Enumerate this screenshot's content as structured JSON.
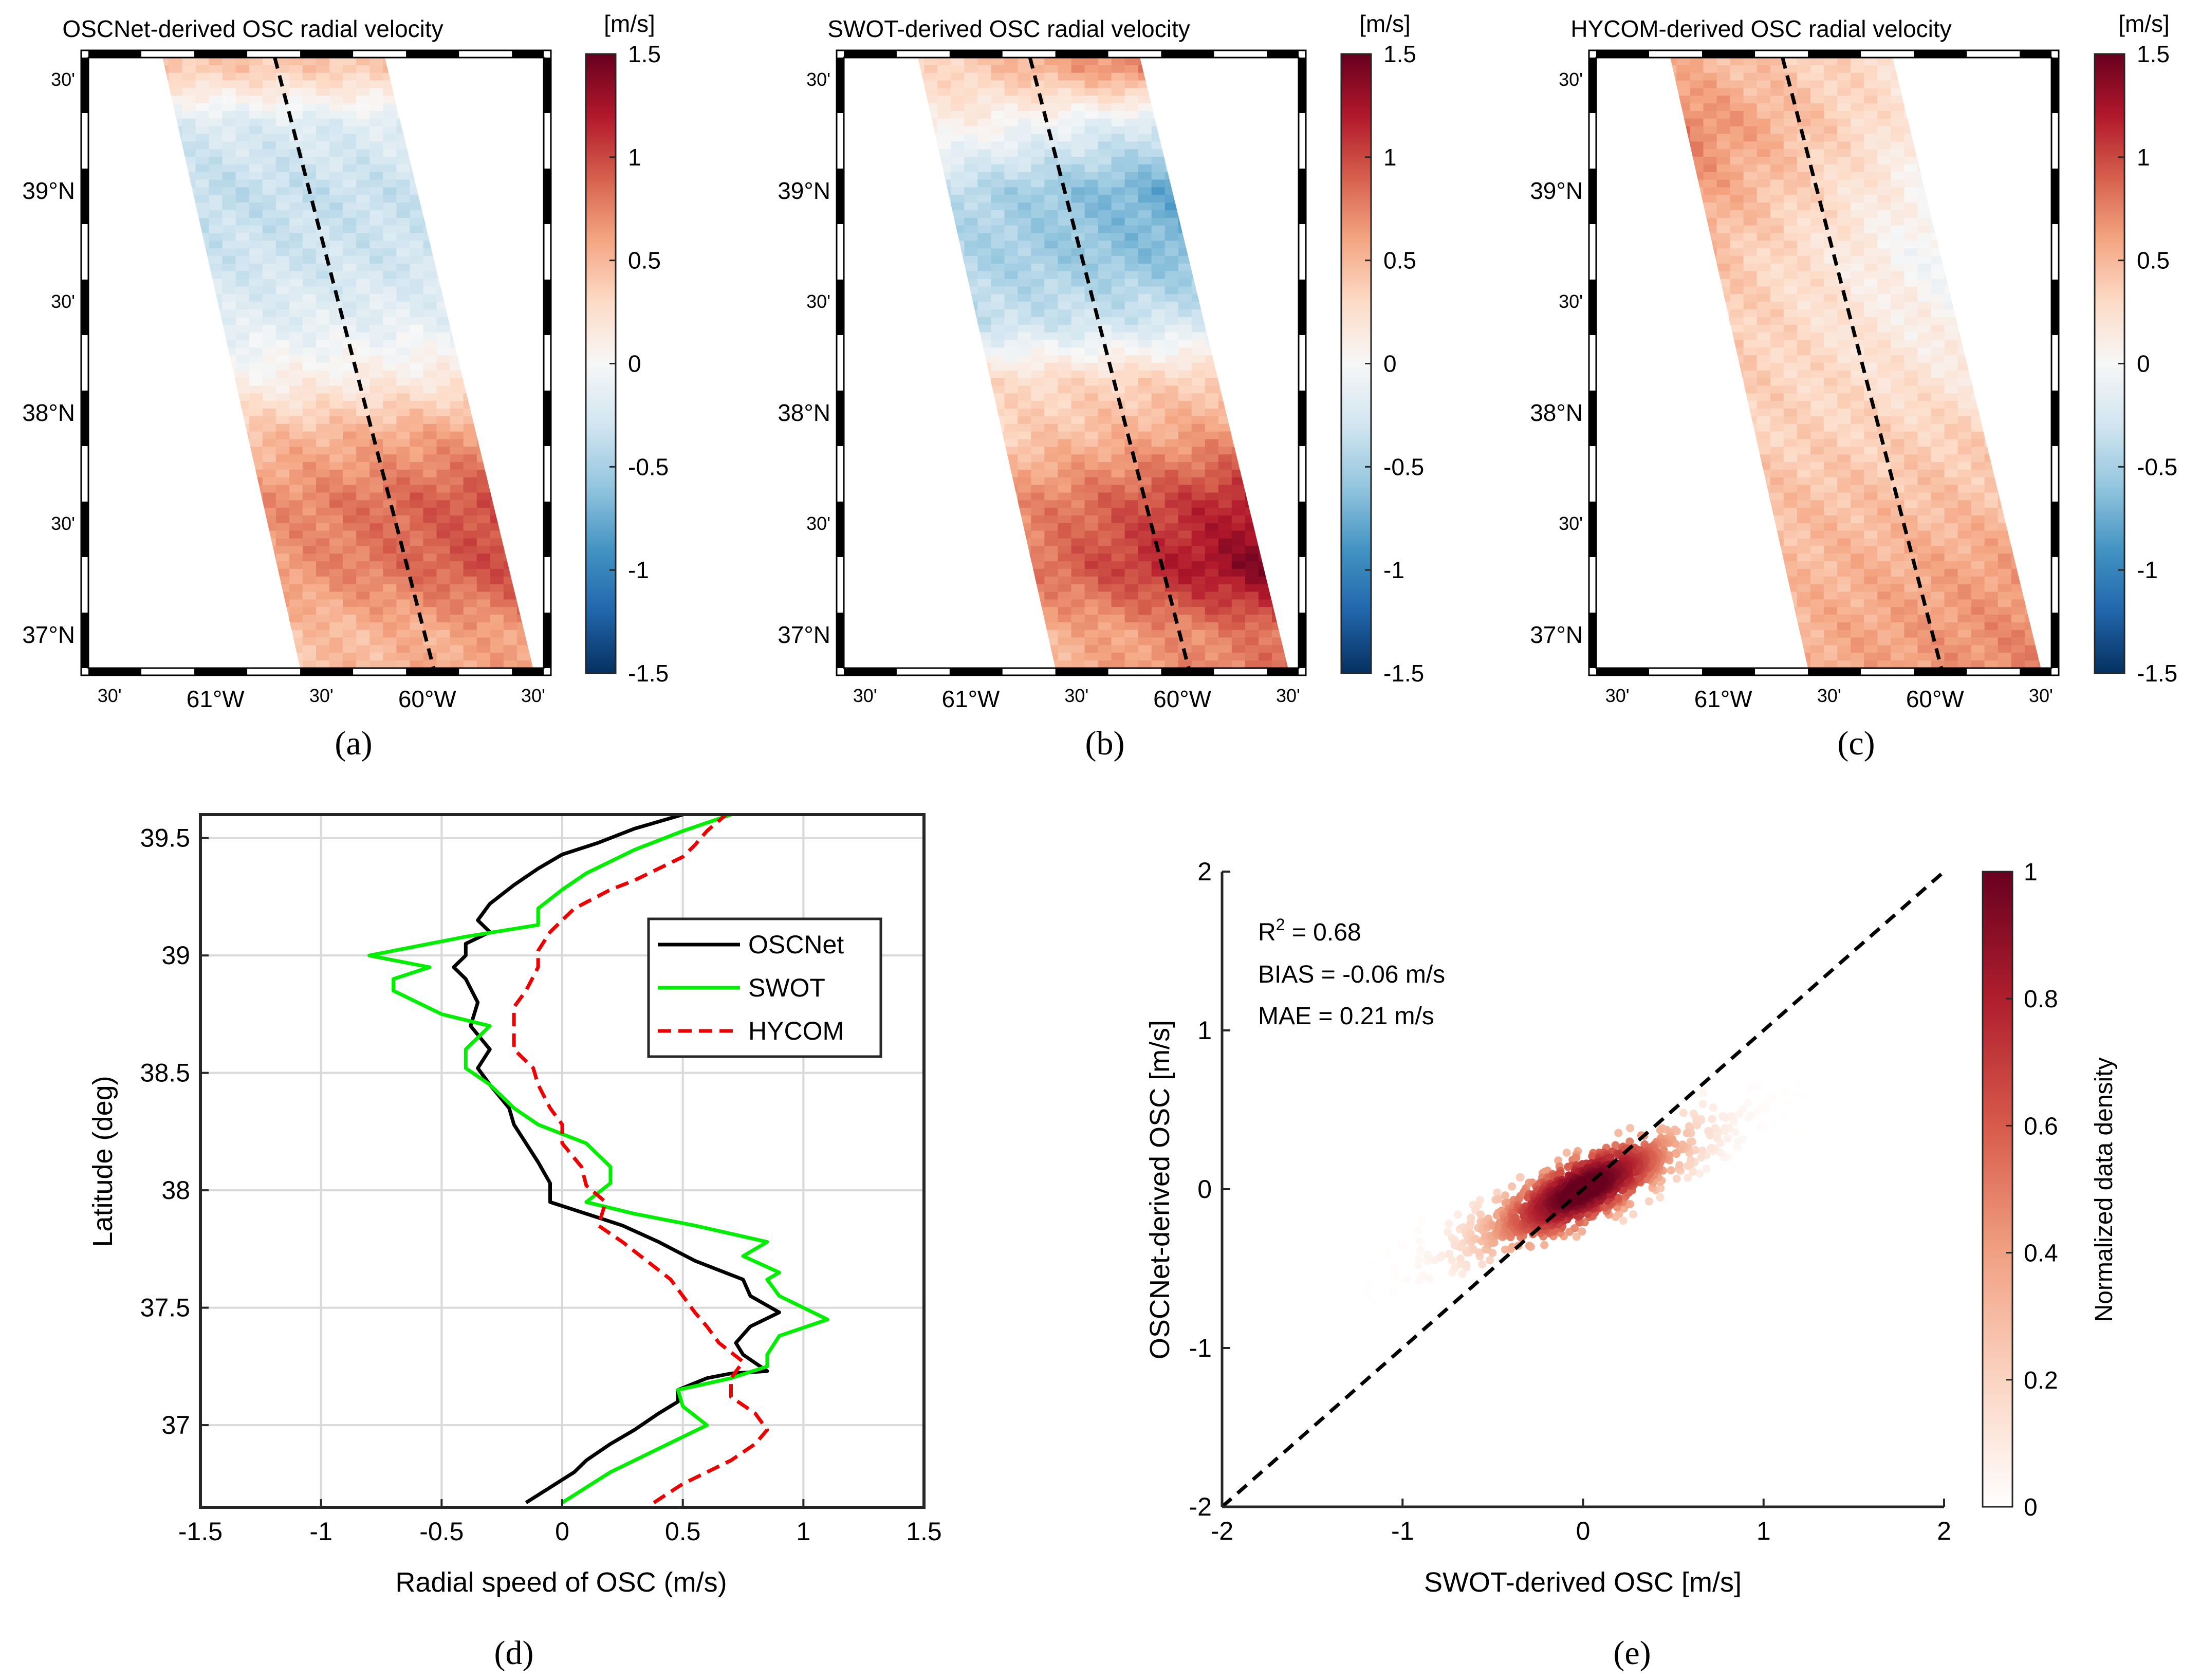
{
  "maps": [
    {
      "id": "a",
      "title": "OSCNet-derived OSC radial velocity",
      "panel_label": "(a)",
      "lat_ticks": [
        {
          "v": 37.0,
          "label": "37°N"
        },
        {
          "v": 37.5,
          "label": "30'"
        },
        {
          "v": 38.0,
          "label": "38°N"
        },
        {
          "v": 38.5,
          "label": "30'"
        },
        {
          "v": 39.0,
          "label": "39°N"
        },
        {
          "v": 39.5,
          "label": "30'"
        }
      ],
      "lon_ticks": [
        {
          "v": -61.5,
          "label": "30'"
        },
        {
          "v": -61.0,
          "label": "61°W"
        },
        {
          "v": -60.5,
          "label": "30'"
        },
        {
          "v": -60.0,
          "label": "60°W"
        },
        {
          "v": -59.5,
          "label": "30'"
        }
      ],
      "lon_range": [
        -61.6,
        -59.45
      ],
      "lat_range": [
        36.85,
        39.6
      ],
      "swath_corners": [
        [
          -61.25,
          39.6
        ],
        [
          -60.2,
          39.6
        ],
        [
          -59.5,
          36.85
        ],
        [
          -60.6,
          36.85
        ]
      ],
      "profile_line": [
        [
          -60.72,
          39.6
        ],
        [
          -59.97,
          36.85
        ]
      ],
      "colorbar_unit": "[m/s]",
      "colorbar_ticks": [
        1.5,
        1,
        0.5,
        0,
        -0.5,
        -1,
        -1.5
      ],
      "colorbar_tick_labels": [
        "1.5",
        "1",
        "0.5",
        "0",
        "-0.5",
        "-1",
        "-1.5"
      ],
      "field_lat": [
        39.55,
        39.3,
        39.0,
        38.7,
        38.4,
        38.15,
        37.9,
        37.6,
        37.3,
        37.0
      ],
      "field_values": [
        0.4,
        -0.2,
        -0.35,
        -0.3,
        -0.15,
        0.1,
        0.5,
        0.75,
        0.7,
        0.45
      ],
      "field_gradient": [
        0.0,
        0.05,
        0.05,
        0.0,
        0.05,
        0.1,
        0.2,
        0.3,
        0.35,
        0.2
      ]
    },
    {
      "id": "b",
      "title": "SWOT-derived OSC radial velocity",
      "panel_label": "(b)",
      "lat_ticks": [
        {
          "v": 37.0,
          "label": "37°N"
        },
        {
          "v": 37.5,
          "label": "30'"
        },
        {
          "v": 38.0,
          "label": "38°N"
        },
        {
          "v": 38.5,
          "label": "30'"
        },
        {
          "v": 39.0,
          "label": "39°N"
        },
        {
          "v": 39.5,
          "label": "30'"
        }
      ],
      "lon_ticks": [
        {
          "v": -61.5,
          "label": "30'"
        },
        {
          "v": -61.0,
          "label": "61°W"
        },
        {
          "v": -60.5,
          "label": "30'"
        },
        {
          "v": -60.0,
          "label": "60°W"
        },
        {
          "v": -59.5,
          "label": "30'"
        }
      ],
      "lon_range": [
        -61.6,
        -59.45
      ],
      "lat_range": [
        36.85,
        39.6
      ],
      "swath_corners": [
        [
          -61.25,
          39.6
        ],
        [
          -60.2,
          39.6
        ],
        [
          -59.5,
          36.85
        ],
        [
          -60.6,
          36.85
        ]
      ],
      "profile_line": [
        [
          -60.72,
          39.6
        ],
        [
          -59.97,
          36.85
        ]
      ],
      "colorbar_unit": "[m/s]",
      "colorbar_ticks": [
        1.5,
        1,
        0.5,
        0,
        -0.5,
        -1,
        -1.5
      ],
      "colorbar_tick_labels": [
        "1.5",
        "1",
        "0.5",
        "0",
        "-0.5",
        "-1",
        "-1.5"
      ],
      "field_lat": [
        39.55,
        39.3,
        39.0,
        38.7,
        38.4,
        38.15,
        37.9,
        37.6,
        37.3,
        37.0
      ],
      "field_values": [
        0.6,
        -0.1,
        -0.6,
        -0.55,
        -0.3,
        0.3,
        0.45,
        0.8,
        0.9,
        0.55
      ],
      "field_gradient": [
        0.5,
        -0.4,
        -0.4,
        -0.2,
        0.1,
        0.1,
        0.3,
        0.5,
        0.6,
        0.3
      ]
    },
    {
      "id": "c",
      "title": "HYCOM-derived OSC radial velocity",
      "panel_label": "(c)",
      "lat_ticks": [
        {
          "v": 37.0,
          "label": "37°N"
        },
        {
          "v": 37.5,
          "label": "30'"
        },
        {
          "v": 38.0,
          "label": "38°N"
        },
        {
          "v": 38.5,
          "label": "30'"
        },
        {
          "v": 39.0,
          "label": "39°N"
        },
        {
          "v": 39.5,
          "label": "30'"
        }
      ],
      "lon_ticks": [
        {
          "v": -61.5,
          "label": "30'"
        },
        {
          "v": -61.0,
          "label": "61°W"
        },
        {
          "v": -60.5,
          "label": "30'"
        },
        {
          "v": -60.0,
          "label": "60°W"
        },
        {
          "v": -59.5,
          "label": "30'"
        }
      ],
      "lon_range": [
        -61.6,
        -59.45
      ],
      "lat_range": [
        36.85,
        39.6
      ],
      "swath_corners": [
        [
          -61.25,
          39.6
        ],
        [
          -60.2,
          39.6
        ],
        [
          -59.5,
          36.85
        ],
        [
          -60.6,
          36.85
        ]
      ],
      "profile_line": [
        [
          -60.72,
          39.6
        ],
        [
          -59.97,
          36.85
        ]
      ],
      "colorbar_unit": "[m/s]",
      "colorbar_ticks": [
        1.5,
        1,
        0.5,
        0,
        -0.5,
        -1,
        -1.5
      ],
      "colorbar_tick_labels": [
        "1.5",
        "1",
        "0.5",
        "0",
        "-0.5",
        "-1",
        "-1.5"
      ],
      "field_lat": [
        39.55,
        39.3,
        39.0,
        38.7,
        38.4,
        38.15,
        37.9,
        37.6,
        37.3,
        37.0
      ],
      "field_values": [
        0.35,
        0.4,
        0.3,
        0.2,
        0.25,
        0.3,
        0.35,
        0.45,
        0.5,
        0.55
      ],
      "field_gradient": [
        -0.3,
        -0.6,
        -0.6,
        -0.5,
        -0.35,
        -0.2,
        0.0,
        0.0,
        0.15,
        0.2
      ]
    }
  ],
  "chart_data": [
    {
      "type": "line",
      "panel_label": "(d)",
      "xlabel": "Radial speed of OSC (m/s)",
      "ylabel": "Latitude (deg)",
      "xlim": [
        -1.5,
        1.5
      ],
      "ylim": [
        36.65,
        39.6
      ],
      "xticks": [
        -1.5,
        -1,
        -0.5,
        0,
        0.5,
        1,
        1.5
      ],
      "xtick_labels": [
        "-1.5",
        "-1",
        "-0.5",
        "0",
        "0.5",
        "1",
        "1.5"
      ],
      "yticks": [
        37,
        37.5,
        38,
        38.5,
        39,
        39.5
      ],
      "ytick_labels": [
        "37",
        "37.5",
        "38",
        "38.5",
        "39",
        "39.5"
      ],
      "grid": true,
      "legend_position": "top-right",
      "series": [
        {
          "name": "OSCNet",
          "color": "#000000",
          "dash": "solid",
          "x": [
            -0.15,
            0.05,
            0.1,
            0.2,
            0.3,
            0.4,
            0.48,
            0.48,
            0.6,
            0.7,
            0.85,
            0.75,
            0.72,
            0.78,
            0.9,
            0.78,
            0.75,
            0.55,
            0.4,
            0.25,
            0.1,
            -0.05,
            -0.05,
            -0.1,
            -0.15,
            -0.2,
            -0.22,
            -0.3,
            -0.35,
            -0.3,
            -0.38,
            -0.35,
            -0.4,
            -0.45,
            -0.4,
            -0.4,
            -0.3,
            -0.35,
            -0.3,
            -0.2,
            -0.1,
            0.0,
            0.15,
            0.3,
            0.5
          ],
          "y": [
            36.67,
            36.8,
            36.85,
            36.92,
            36.98,
            37.05,
            37.1,
            37.15,
            37.2,
            37.22,
            37.23,
            37.3,
            37.35,
            37.42,
            37.48,
            37.55,
            37.62,
            37.7,
            37.78,
            37.85,
            37.9,
            37.95,
            38.03,
            38.12,
            38.2,
            38.28,
            38.35,
            38.45,
            38.52,
            38.6,
            38.7,
            38.8,
            38.9,
            38.95,
            39.0,
            39.05,
            39.1,
            39.15,
            39.22,
            39.3,
            39.37,
            39.43,
            39.48,
            39.54,
            39.6
          ]
        },
        {
          "name": "SWOT",
          "color": "#00ee00",
          "dash": "solid",
          "x": [
            0.0,
            0.2,
            0.4,
            0.5,
            0.6,
            0.5,
            0.48,
            0.7,
            0.85,
            0.85,
            0.9,
            1.1,
            1.0,
            0.9,
            0.85,
            0.9,
            0.75,
            0.85,
            0.55,
            0.3,
            0.1,
            0.2,
            0.2,
            0.1,
            -0.1,
            -0.2,
            -0.3,
            -0.4,
            -0.4,
            -0.3,
            -0.5,
            -0.7,
            -0.7,
            -0.55,
            -0.8,
            -0.55,
            -0.4,
            -0.1,
            -0.1,
            0.0,
            0.1,
            0.3,
            0.5,
            0.7
          ],
          "y": [
            36.67,
            36.8,
            36.9,
            36.95,
            37.0,
            37.08,
            37.15,
            37.2,
            37.25,
            37.3,
            37.38,
            37.45,
            37.5,
            37.55,
            37.62,
            37.65,
            37.72,
            37.78,
            37.85,
            37.9,
            37.95,
            38.03,
            38.1,
            38.2,
            38.28,
            38.35,
            38.45,
            38.52,
            38.6,
            38.7,
            38.75,
            38.85,
            38.9,
            38.95,
            39.0,
            39.05,
            39.08,
            39.13,
            39.2,
            39.28,
            39.35,
            39.45,
            39.53,
            39.6
          ]
        },
        {
          "name": "HYCOM",
          "color": "#ee0000",
          "dash": "dashed",
          "x": [
            0.38,
            0.5,
            0.6,
            0.7,
            0.8,
            0.85,
            0.8,
            0.7,
            0.7,
            0.75,
            0.65,
            0.6,
            0.55,
            0.5,
            0.45,
            0.35,
            0.25,
            0.15,
            0.18,
            0.1,
            0.08,
            0.0,
            0.0,
            -0.05,
            -0.1,
            -0.12,
            -0.2,
            -0.2,
            -0.2,
            -0.15,
            -0.1,
            -0.1,
            -0.05,
            0.0,
            0.05,
            0.2,
            0.3,
            0.4,
            0.5,
            0.55,
            0.6,
            0.68
          ],
          "y": [
            36.67,
            36.75,
            36.8,
            36.85,
            36.92,
            36.98,
            37.05,
            37.12,
            37.2,
            37.27,
            37.35,
            37.42,
            37.48,
            37.55,
            37.62,
            37.7,
            37.78,
            37.85,
            37.95,
            38.02,
            38.1,
            38.2,
            38.28,
            38.35,
            38.45,
            38.52,
            38.6,
            38.7,
            38.78,
            38.85,
            38.95,
            39.02,
            39.1,
            39.15,
            39.2,
            39.28,
            39.32,
            39.37,
            39.42,
            39.47,
            39.53,
            39.6
          ]
        }
      ]
    },
    {
      "type": "scatter",
      "panel_label": "(e)",
      "xlabel": "SWOT-derived OSC [m/s]",
      "ylabel": "OSCNet-derived OSC [m/s]",
      "xlim": [
        -2,
        2
      ],
      "ylim": [
        -2,
        2
      ],
      "xticks": [
        -2,
        -1,
        0,
        1,
        2
      ],
      "xtick_labels": [
        "-2",
        "-1",
        "0",
        "1",
        "2"
      ],
      "yticks": [
        -2,
        -1,
        0,
        1,
        2
      ],
      "ytick_labels": [
        "-2",
        "-1",
        "0",
        "1",
        "2"
      ],
      "grid": false,
      "reference_line": "1:1 dashed",
      "stats": {
        "r2_prefix": "R",
        "r2_sup": "2",
        "r2_value": " = 0.68",
        "bias": "BIAS = -0.06 m/s",
        "mae": "MAE = 0.21 m/s"
      },
      "colorbar_label": "Normalized data density",
      "colorbar_ticks": [
        0,
        0.2,
        0.4,
        0.6,
        0.8,
        1
      ],
      "colorbar_tick_labels": [
        "0",
        "0.2",
        "0.4",
        "0.6",
        "0.8",
        "1"
      ],
      "cluster_fit": {
        "slope": 0.5,
        "intercept": 0.0,
        "x_range": [
          -1.25,
          1.55
        ],
        "n_points": 1100,
        "density_scale_x": 0.35
      }
    }
  ]
}
